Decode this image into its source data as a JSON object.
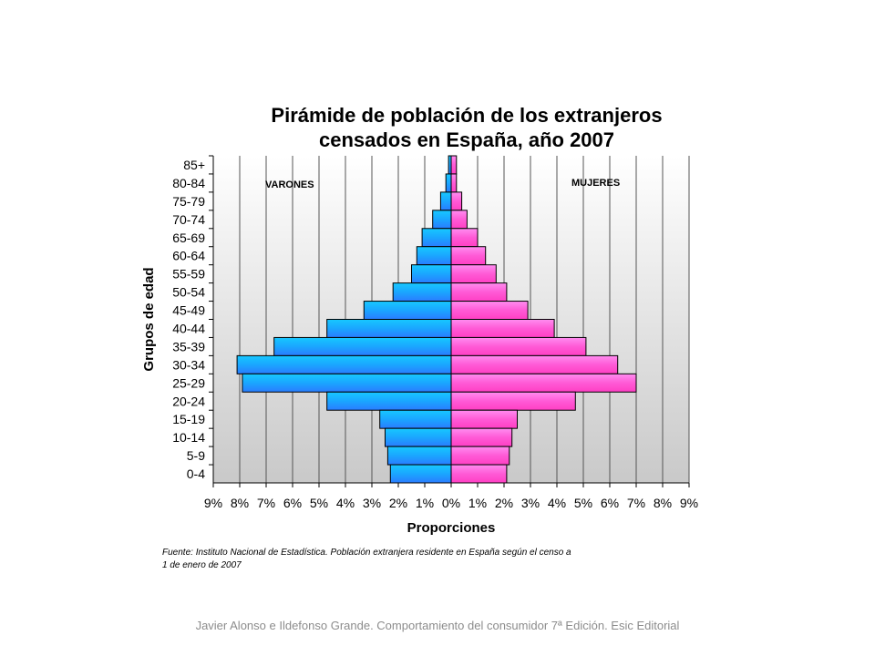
{
  "slide": {
    "footer": "Javier Alonso e Ildefonso Grande. Comportamiento del consumidor 7ª Edición. Esic Editorial"
  },
  "chart_data": {
    "type": "bar",
    "title_line1": "Pirámide de población de los extranjeros",
    "title_line2": "censados en España, año 2007",
    "xlabel": "Proporciones",
    "ylabel": "Grupos de edad",
    "source_line1": "Fuente: Instituto Nacional de Estadística. Población extranjera residente en España según el censo a",
    "source_line2": "1  de enero de 2007",
    "categories": [
      "85+",
      "80-84",
      "75-79",
      "70-74",
      "65-69",
      "60-64",
      "55-59",
      "50-54",
      "45-49",
      "40-44",
      "35-39",
      "30-34",
      "25-29",
      "20-24",
      "15-19",
      "10-14",
      "5-9",
      "0-4"
    ],
    "series": [
      {
        "name": "VARONES",
        "color": "#1fa3ff",
        "values": [
          0.1,
          0.2,
          0.4,
          0.7,
          1.1,
          1.3,
          1.5,
          2.2,
          3.3,
          4.7,
          6.7,
          8.1,
          7.9,
          4.7,
          2.7,
          2.5,
          2.4,
          2.3
        ]
      },
      {
        "name": "MUJERES",
        "color": "#ff5ad6",
        "values": [
          0.2,
          0.2,
          0.4,
          0.6,
          1.0,
          1.3,
          1.7,
          2.1,
          2.9,
          3.9,
          5.1,
          6.3,
          7.0,
          4.7,
          2.5,
          2.3,
          2.2,
          2.1
        ]
      }
    ],
    "xlim": [
      -9,
      9
    ],
    "xticks": [
      "9%",
      "8%",
      "7%",
      "6%",
      "5%",
      "4%",
      "3%",
      "2%",
      "1%",
      "0%",
      "1%",
      "2%",
      "3%",
      "4%",
      "5%",
      "6%",
      "7%",
      "8%",
      "9%"
    ],
    "grid": true
  }
}
